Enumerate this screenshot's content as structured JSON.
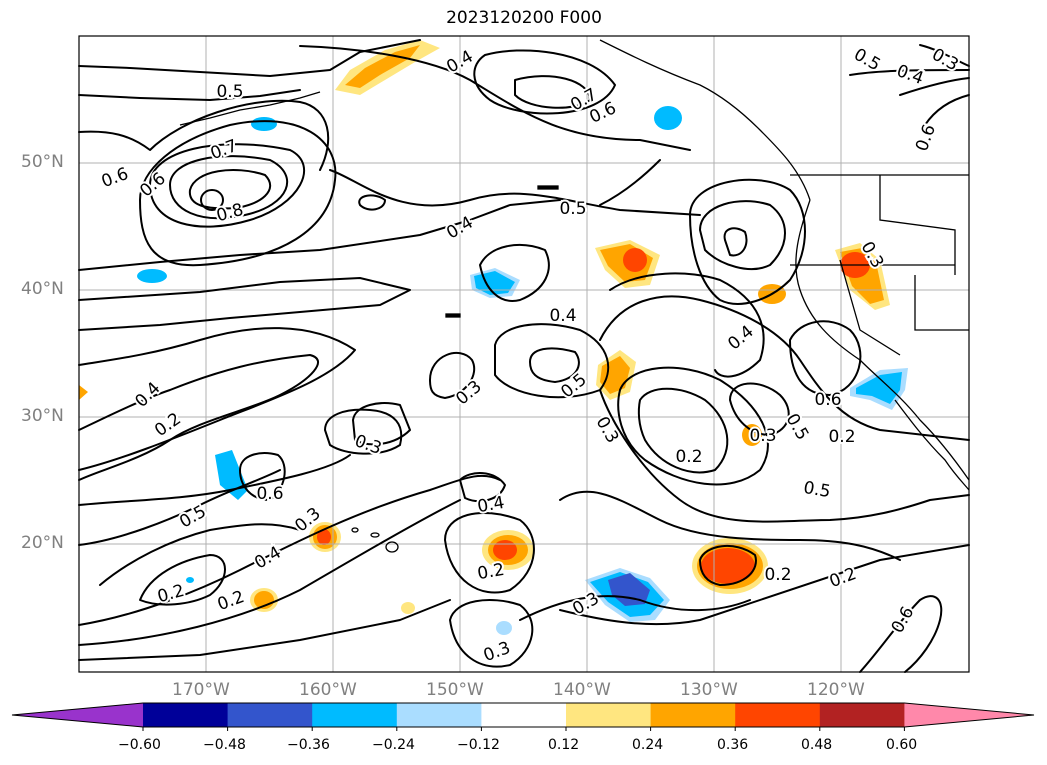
{
  "title": "2023120200 F000",
  "lat_labels": [
    "50°N",
    "40°N",
    "30°N",
    "20°N"
  ],
  "lon_labels": [
    "170°W",
    "160°W",
    "150°W",
    "140°W",
    "130°W",
    "120°W"
  ],
  "colorbar": {
    "ticks": [
      "−0.60",
      "−0.48",
      "−0.36",
      "−0.24",
      "−0.12",
      "0.12",
      "0.24",
      "0.36",
      "0.48",
      "0.60"
    ],
    "colors": [
      "#9933cc",
      "#000099",
      "#3355cc",
      "#00bbff",
      "#aaddff",
      "#ffffff",
      "#ffe680",
      "#ffa500",
      "#ff4500",
      "#b22222",
      "#ff88aa"
    ]
  },
  "contour_labels": [
    "0.4",
    "0.5",
    "0.7",
    "0.6",
    "0.5",
    "0.4",
    "0.3",
    "0.6",
    "0.7",
    "0.8",
    "0.6",
    "0.4",
    "0.5",
    "0.4",
    "0.2",
    "0.3",
    "0.3",
    "0.5",
    "0.4",
    "0.3",
    "0.2",
    "0.3",
    "0.5",
    "0.4",
    "0.6",
    "0.2",
    "0.3",
    "0.6",
    "0.5",
    "0.4",
    "0.2",
    "0.3",
    "0.2",
    "0.6",
    "0.3",
    "0.4",
    "0.2",
    "0.2",
    "0.5",
    "0.3",
    "0.2",
    "0.6"
  ],
  "colors": {
    "contour": "#000000",
    "grid": "#b0b0b0",
    "tick_label": "#808080"
  }
}
